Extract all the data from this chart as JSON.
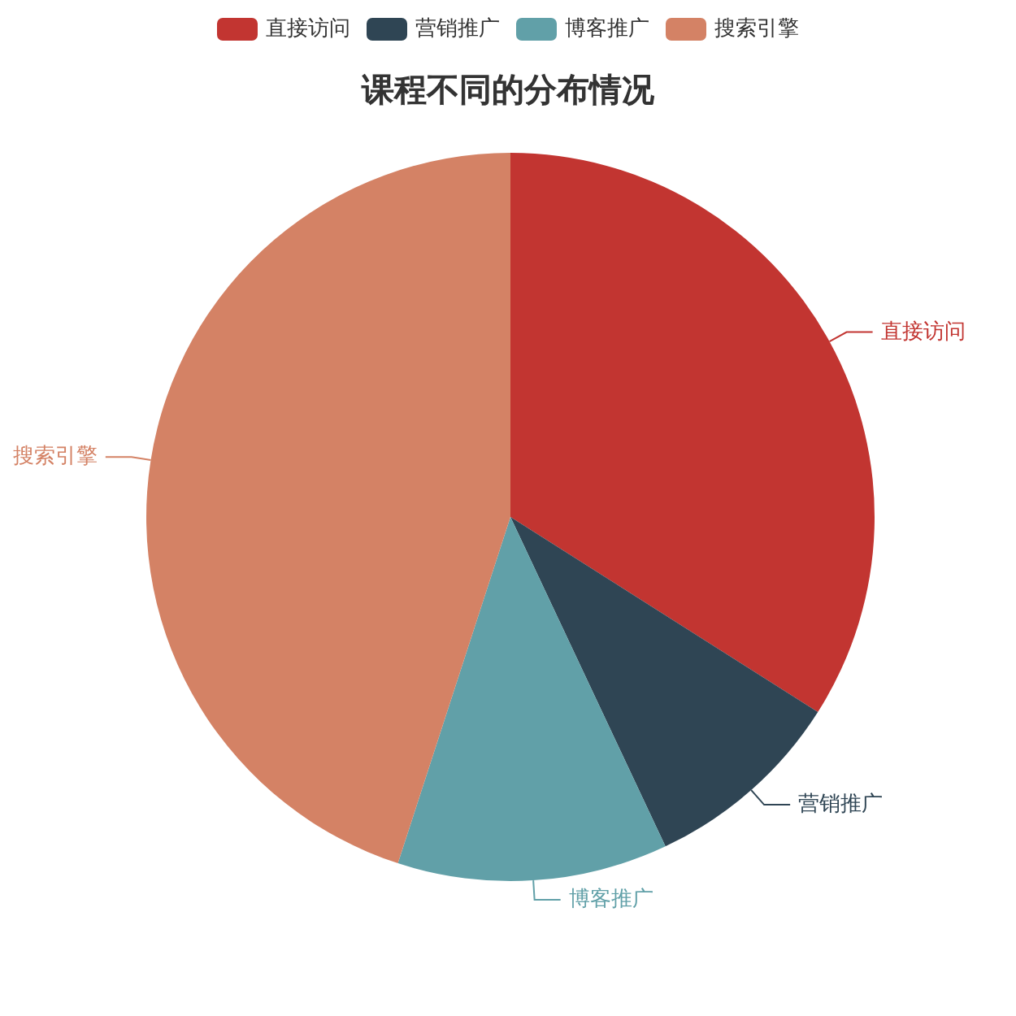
{
  "chart_data": {
    "type": "pie",
    "title": "课程不同的分布情况",
    "categories": [
      "直接访问",
      "营销推广",
      "博客推广",
      "搜索引擎"
    ],
    "values": [
      34,
      9,
      12,
      45
    ],
    "colors": [
      "#c23531",
      "#2f4554",
      "#61a0a8",
      "#d48265"
    ],
    "legend": "top"
  }
}
